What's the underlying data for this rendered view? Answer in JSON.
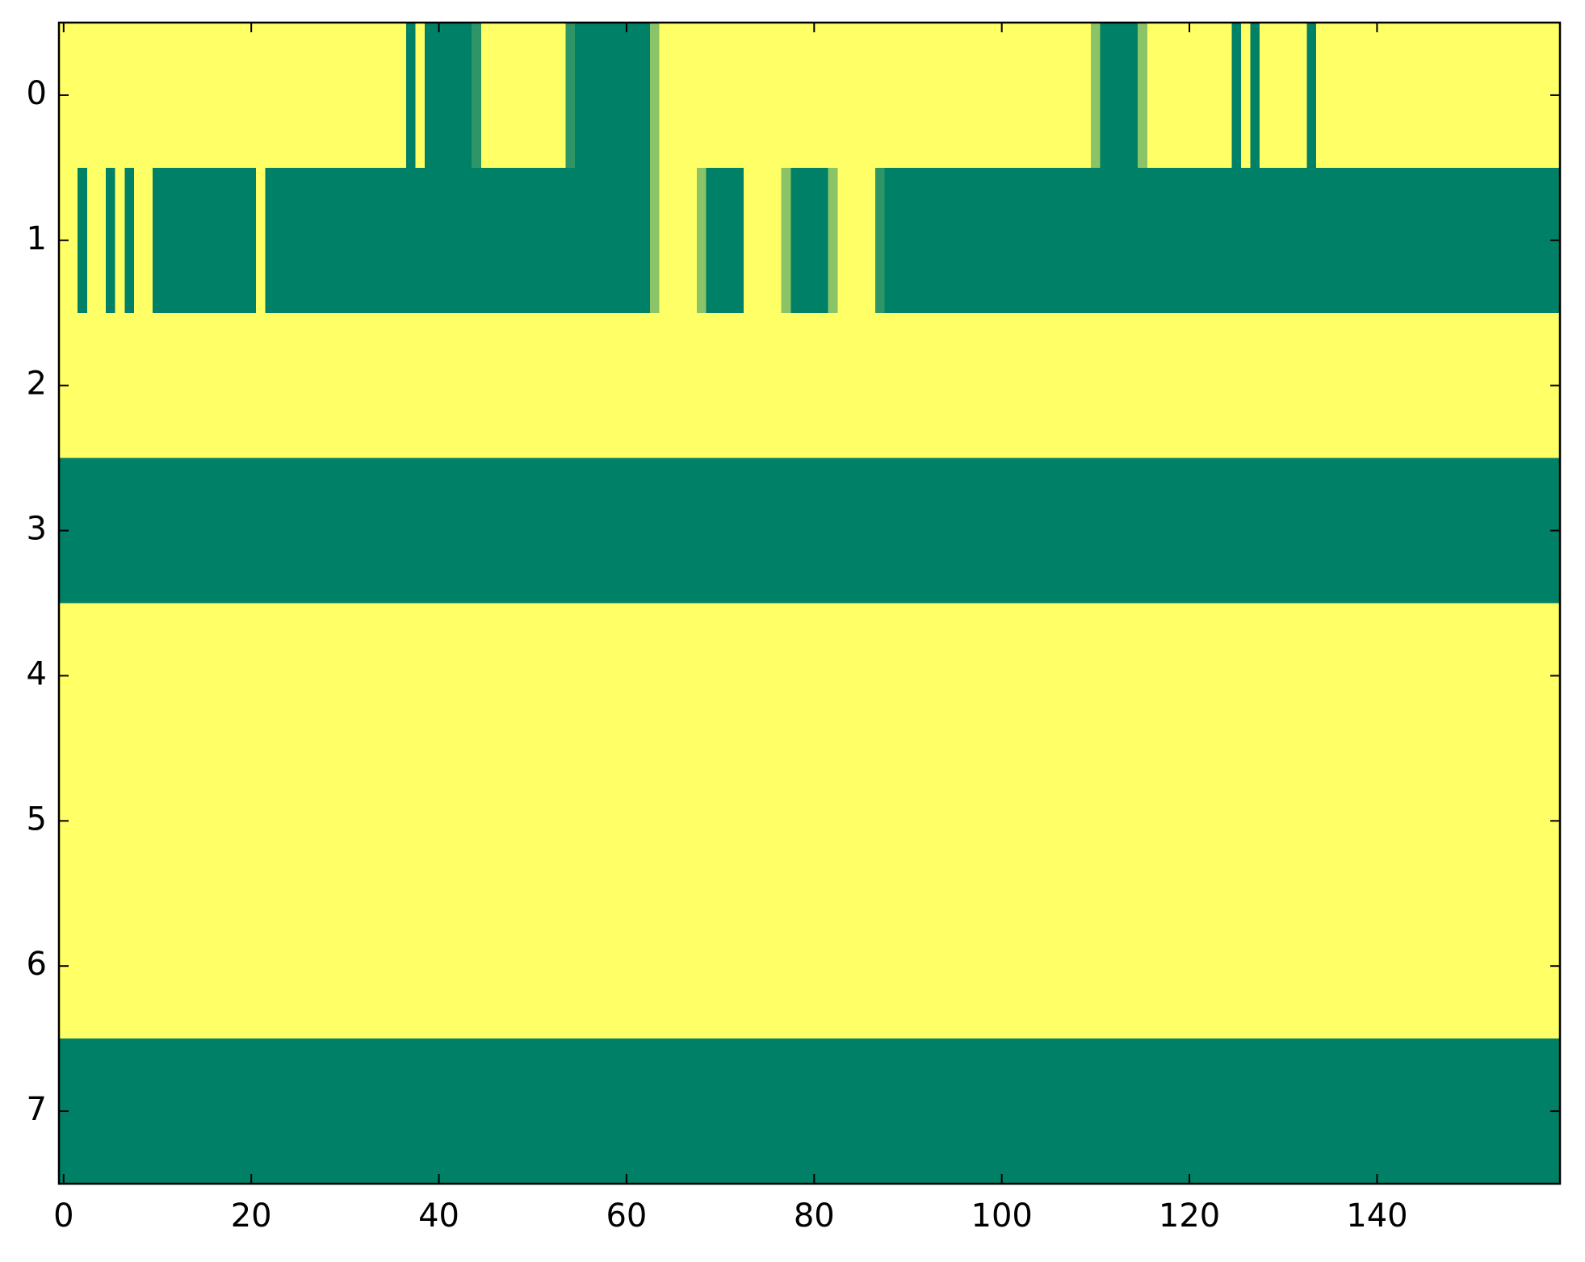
{
  "chart_data": {
    "type": "heatmap",
    "colormap": "summer",
    "xlim": [
      -0.5,
      159.5
    ],
    "ylim": [
      7.5,
      -0.5
    ],
    "xticks": [
      0,
      20,
      40,
      60,
      80,
      100,
      120,
      140
    ],
    "yticks": [
      0,
      1,
      2,
      3,
      4,
      5,
      6,
      7
    ],
    "values": [
      [
        1,
        1,
        1,
        1,
        1,
        1,
        1,
        1,
        1,
        1,
        1,
        1,
        1,
        1,
        1,
        1,
        1,
        1,
        1,
        1,
        1,
        1,
        1,
        1,
        1,
        1,
        1,
        1,
        1,
        1,
        1,
        1,
        1,
        1,
        1,
        1,
        1,
        0,
        1,
        0,
        0,
        0,
        0,
        0,
        0.18,
        1,
        1,
        1,
        1,
        1,
        1,
        1,
        1,
        1,
        0.18,
        0,
        0,
        0,
        0,
        0,
        0,
        0,
        0,
        0.54,
        1,
        1,
        1,
        1,
        1,
        1,
        1,
        1,
        1,
        1,
        1,
        1,
        1,
        1,
        1,
        1,
        1,
        1,
        1,
        1,
        1,
        1,
        1,
        1,
        1,
        1,
        1,
        1,
        1,
        1,
        1,
        1,
        1,
        1,
        1,
        1,
        1,
        1,
        1,
        1,
        1,
        1,
        1,
        1,
        1,
        1,
        0.54,
        0,
        0,
        0,
        0,
        0.54,
        1,
        1,
        1,
        1,
        1,
        1,
        1,
        1,
        1,
        0,
        1,
        0,
        1,
        1,
        1,
        1,
        1,
        0,
        1,
        1,
        1,
        1,
        1,
        1,
        1,
        1,
        1,
        1,
        1,
        1,
        1,
        1,
        1,
        1,
        1,
        1,
        1,
        1,
        1,
        1,
        1,
        1,
        1,
        1
      ],
      [
        1,
        1,
        0,
        1,
        1,
        0,
        1,
        0,
        1,
        1,
        0,
        0,
        0,
        0,
        0,
        0,
        0,
        0,
        0,
        0,
        0,
        1,
        0,
        0,
        0,
        0,
        0,
        0,
        0,
        0,
        0,
        0,
        0,
        0,
        0,
        0,
        0,
        0,
        0,
        0,
        0,
        0,
        0,
        0,
        0,
        0,
        0,
        0,
        0,
        0,
        0,
        0,
        0,
        0,
        0,
        0,
        0,
        0,
        0,
        0,
        0,
        0,
        0,
        0.54,
        1,
        1,
        1,
        1,
        0.54,
        0,
        0,
        0,
        0,
        1,
        1,
        1,
        1,
        0.54,
        0,
        0,
        0,
        0,
        0.54,
        1,
        1,
        1,
        1,
        0.18,
        0,
        0,
        0,
        0,
        0,
        0,
        0,
        0,
        0,
        0,
        0,
        0,
        0,
        0,
        0,
        0,
        0,
        0,
        0,
        0,
        0,
        0,
        0,
        0,
        0,
        0,
        0,
        0,
        0,
        0,
        0,
        0,
        0,
        0,
        0,
        0,
        0,
        0,
        0,
        0,
        0,
        0,
        0,
        0,
        0,
        0,
        0,
        0,
        0,
        0,
        0,
        0,
        0,
        0,
        0,
        0,
        0,
        0,
        0,
        0,
        0,
        0,
        0,
        0,
        0,
        0,
        0,
        0,
        0,
        0,
        0,
        0
      ],
      [
        1,
        1,
        1,
        1,
        1,
        1,
        1,
        1,
        1,
        1,
        1,
        1,
        1,
        1,
        1,
        1,
        1,
        1,
        1,
        1,
        1,
        1,
        1,
        1,
        1,
        1,
        1,
        1,
        1,
        1,
        1,
        1,
        1,
        1,
        1,
        1,
        1,
        1,
        1,
        1,
        1,
        1,
        1,
        1,
        1,
        1,
        1,
        1,
        1,
        1,
        1,
        1,
        1,
        1,
        1,
        1,
        1,
        1,
        1,
        1,
        1,
        1,
        1,
        1,
        1,
        1,
        1,
        1,
        1,
        1,
        1,
        1,
        1,
        1,
        1,
        1,
        1,
        1,
        1,
        1,
        1,
        1,
        1,
        1,
        1,
        1,
        1,
        1,
        1,
        1,
        1,
        1,
        1,
        1,
        1,
        1,
        1,
        1,
        1,
        1,
        1,
        1,
        1,
        1,
        1,
        1,
        1,
        1,
        1,
        1,
        1,
        1,
        1,
        1,
        1,
        1,
        1,
        1,
        1,
        1,
        1,
        1,
        1,
        1,
        1,
        1,
        1,
        1,
        1,
        1,
        1,
        1,
        1,
        1,
        1,
        1,
        1,
        1,
        1,
        1,
        1,
        1,
        1,
        1,
        1,
        1,
        1,
        1,
        1,
        1,
        1,
        1,
        1,
        1,
        1,
        1,
        1,
        1,
        1,
        1
      ],
      [
        0,
        0,
        0,
        0,
        0,
        0,
        0,
        0,
        0,
        0,
        0,
        0,
        0,
        0,
        0,
        0,
        0,
        0,
        0,
        0,
        0,
        0,
        0,
        0,
        0,
        0,
        0,
        0,
        0,
        0,
        0,
        0,
        0,
        0,
        0,
        0,
        0,
        0,
        0,
        0,
        0,
        0,
        0,
        0,
        0,
        0,
        0,
        0,
        0,
        0,
        0,
        0,
        0,
        0,
        0,
        0,
        0,
        0,
        0,
        0,
        0,
        0,
        0,
        0,
        0,
        0,
        0,
        0,
        0,
        0,
        0,
        0,
        0,
        0,
        0,
        0,
        0,
        0,
        0,
        0,
        0,
        0,
        0,
        0,
        0,
        0,
        0,
        0,
        0,
        0,
        0,
        0,
        0,
        0,
        0,
        0,
        0,
        0,
        0,
        0,
        0,
        0,
        0,
        0,
        0,
        0,
        0,
        0,
        0,
        0,
        0,
        0,
        0,
        0,
        0,
        0,
        0,
        0,
        0,
        0,
        0,
        0,
        0,
        0,
        0,
        0,
        0,
        0,
        0,
        0,
        0,
        0,
        0,
        0,
        0,
        0,
        0,
        0,
        0,
        0,
        0,
        0,
        0,
        0,
        0,
        0,
        0,
        0,
        0,
        0,
        0,
        0,
        0,
        0,
        0,
        0,
        0,
        0,
        0,
        0
      ],
      [
        1,
        1,
        1,
        1,
        1,
        1,
        1,
        1,
        1,
        1,
        1,
        1,
        1,
        1,
        1,
        1,
        1,
        1,
        1,
        1,
        1,
        1,
        1,
        1,
        1,
        1,
        1,
        1,
        1,
        1,
        1,
        1,
        1,
        1,
        1,
        1,
        1,
        1,
        1,
        1,
        1,
        1,
        1,
        1,
        1,
        1,
        1,
        1,
        1,
        1,
        1,
        1,
        1,
        1,
        1,
        1,
        1,
        1,
        1,
        1,
        1,
        1,
        1,
        1,
        1,
        1,
        1,
        1,
        1,
        1,
        1,
        1,
        1,
        1,
        1,
        1,
        1,
        1,
        1,
        1,
        1,
        1,
        1,
        1,
        1,
        1,
        1,
        1,
        1,
        1,
        1,
        1,
        1,
        1,
        1,
        1,
        1,
        1,
        1,
        1,
        1,
        1,
        1,
        1,
        1,
        1,
        1,
        1,
        1,
        1,
        1,
        1,
        1,
        1,
        1,
        1,
        1,
        1,
        1,
        1,
        1,
        1,
        1,
        1,
        1,
        1,
        1,
        1,
        1,
        1,
        1,
        1,
        1,
        1,
        1,
        1,
        1,
        1,
        1,
        1,
        1,
        1,
        1,
        1,
        1,
        1,
        1,
        1,
        1,
        1,
        1,
        1,
        1,
        1,
        1,
        1,
        1,
        1,
        1,
        1
      ],
      [
        1,
        1,
        1,
        1,
        1,
        1,
        1,
        1,
        1,
        1,
        1,
        1,
        1,
        1,
        1,
        1,
        1,
        1,
        1,
        1,
        1,
        1,
        1,
        1,
        1,
        1,
        1,
        1,
        1,
        1,
        1,
        1,
        1,
        1,
        1,
        1,
        1,
        1,
        1,
        1,
        1,
        1,
        1,
        1,
        1,
        1,
        1,
        1,
        1,
        1,
        1,
        1,
        1,
        1,
        1,
        1,
        1,
        1,
        1,
        1,
        1,
        1,
        1,
        1,
        1,
        1,
        1,
        1,
        1,
        1,
        1,
        1,
        1,
        1,
        1,
        1,
        1,
        1,
        1,
        1,
        1,
        1,
        1,
        1,
        1,
        1,
        1,
        1,
        1,
        1,
        1,
        1,
        1,
        1,
        1,
        1,
        1,
        1,
        1,
        1,
        1,
        1,
        1,
        1,
        1,
        1,
        1,
        1,
        1,
        1,
        1,
        1,
        1,
        1,
        1,
        1,
        1,
        1,
        1,
        1,
        1,
        1,
        1,
        1,
        1,
        1,
        1,
        1,
        1,
        1,
        1,
        1,
        1,
        1,
        1,
        1,
        1,
        1,
        1,
        1,
        1,
        1,
        1,
        1,
        1,
        1,
        1,
        1,
        1,
        1,
        1,
        1,
        1,
        1,
        1,
        1,
        1,
        1,
        1,
        1
      ],
      [
        1,
        1,
        1,
        1,
        1,
        1,
        1,
        1,
        1,
        1,
        1,
        1,
        1,
        1,
        1,
        1,
        1,
        1,
        1,
        1,
        1,
        1,
        1,
        1,
        1,
        1,
        1,
        1,
        1,
        1,
        1,
        1,
        1,
        1,
        1,
        1,
        1,
        1,
        1,
        1,
        1,
        1,
        1,
        1,
        1,
        1,
        1,
        1,
        1,
        1,
        1,
        1,
        1,
        1,
        1,
        1,
        1,
        1,
        1,
        1,
        1,
        1,
        1,
        1,
        1,
        1,
        1,
        1,
        1,
        1,
        1,
        1,
        1,
        1,
        1,
        1,
        1,
        1,
        1,
        1,
        1,
        1,
        1,
        1,
        1,
        1,
        1,
        1,
        1,
        1,
        1,
        1,
        1,
        1,
        1,
        1,
        1,
        1,
        1,
        1,
        1,
        1,
        1,
        1,
        1,
        1,
        1,
        1,
        1,
        1,
        1,
        1,
        1,
        1,
        1,
        1,
        1,
        1,
        1,
        1,
        1,
        1,
        1,
        1,
        1,
        1,
        1,
        1,
        1,
        1,
        1,
        1,
        1,
        1,
        1,
        1,
        1,
        1,
        1,
        1,
        1,
        1,
        1,
        1,
        1,
        1,
        1,
        1,
        1,
        1,
        1,
        1,
        1,
        1,
        1,
        1,
        1,
        1,
        1,
        1
      ],
      [
        0,
        0,
        0,
        0,
        0,
        0,
        0,
        0,
        0,
        0,
        0,
        0,
        0,
        0,
        0,
        0,
        0,
        0,
        0,
        0,
        0,
        0,
        0,
        0,
        0,
        0,
        0,
        0,
        0,
        0,
        0,
        0,
        0,
        0,
        0,
        0,
        0,
        0,
        0,
        0,
        0,
        0,
        0,
        0,
        0,
        0,
        0,
        0,
        0,
        0,
        0,
        0,
        0,
        0,
        0,
        0,
        0,
        0,
        0,
        0,
        0,
        0,
        0,
        0,
        0,
        0,
        0,
        0,
        0,
        0,
        0,
        0,
        0,
        0,
        0,
        0,
        0,
        0,
        0,
        0,
        0,
        0,
        0,
        0,
        0,
        0,
        0,
        0,
        0,
        0,
        0,
        0,
        0,
        0,
        0,
        0,
        0,
        0,
        0,
        0,
        0,
        0,
        0,
        0,
        0,
        0,
        0,
        0,
        0,
        0,
        0,
        0,
        0,
        0,
        0,
        0,
        0,
        0,
        0,
        0,
        0,
        0,
        0,
        0,
        0,
        0,
        0,
        0,
        0,
        0,
        0,
        0,
        0,
        0,
        0,
        0,
        0,
        0,
        0,
        0,
        0,
        0,
        0,
        0,
        0,
        0,
        0,
        0,
        0,
        0,
        0,
        0,
        0,
        0,
        0,
        0,
        0,
        0,
        0,
        0
      ]
    ]
  }
}
